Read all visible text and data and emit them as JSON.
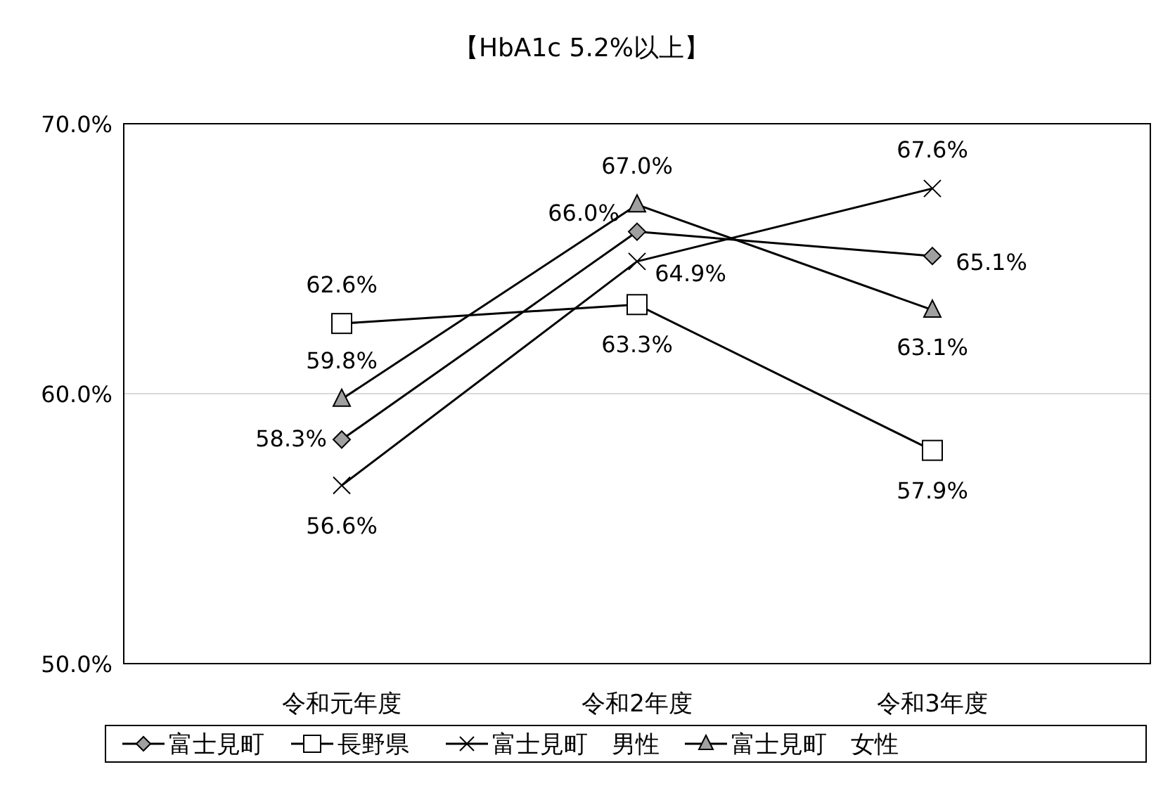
{
  "chart_data": {
    "type": "line",
    "title": "【HbA1c 5.2%以上】",
    "categories": [
      "令和元年度",
      "令和2年度",
      "令和3年度"
    ],
    "ylim": [
      50,
      70
    ],
    "yticks": [
      {
        "value": 50,
        "label": "50.0%"
      },
      {
        "value": 60,
        "label": "60.0%"
      },
      {
        "value": 70,
        "label": "70.0%"
      }
    ],
    "grid": "y",
    "legend": "bottom",
    "series": [
      {
        "name": "富士見町",
        "color": "#000000",
        "marker": "diamond",
        "values": [
          58.3,
          66.0,
          65.1
        ],
        "value_labels": [
          "58.3%",
          "66.0%",
          "65.1%"
        ]
      },
      {
        "name": "長野県",
        "color": "#000000",
        "marker": "square",
        "values": [
          62.6,
          63.3,
          57.9
        ],
        "value_labels": [
          "62.6%",
          "63.3%",
          "57.9%"
        ]
      },
      {
        "name": "富士見町　男性",
        "color": "#000000",
        "marker": "cross",
        "values": [
          56.6,
          64.9,
          67.6
        ],
        "value_labels": [
          "56.6%",
          "64.9%",
          "67.6%"
        ]
      },
      {
        "name": "富士見町　女性",
        "color": "#000000",
        "marker": "triangle",
        "values": [
          59.8,
          67.0,
          63.1
        ],
        "value_labels": [
          "59.8%",
          "67.0%",
          "63.1%"
        ]
      }
    ]
  }
}
